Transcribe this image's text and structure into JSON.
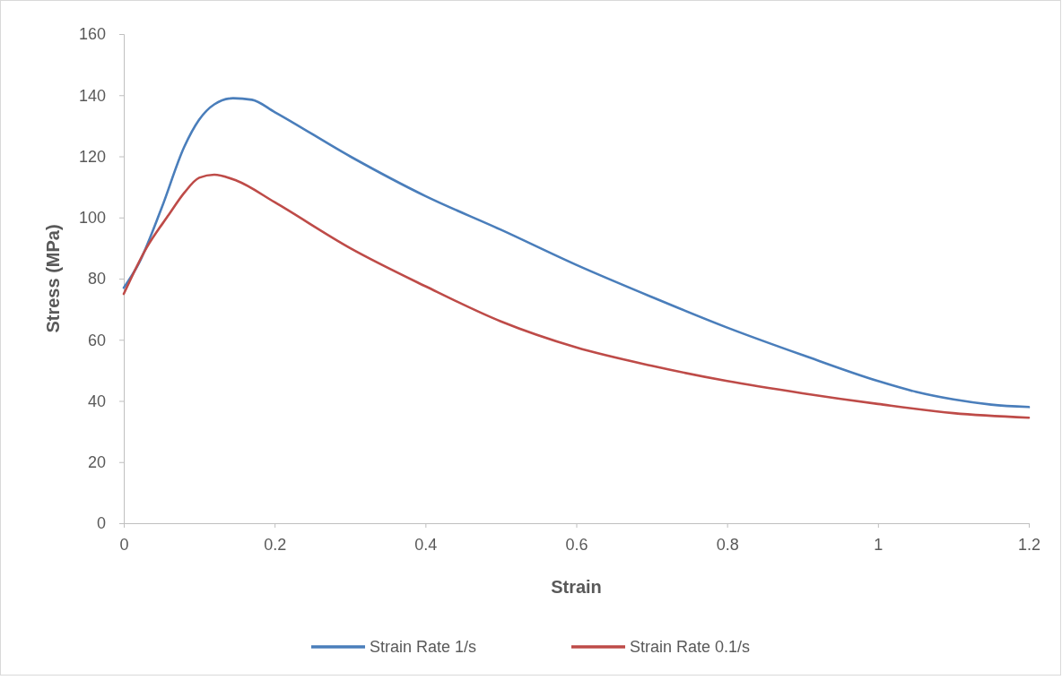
{
  "chart_data": {
    "type": "line",
    "xlabel": "Strain",
    "ylabel": "Stress (MPa)",
    "xlim": [
      0,
      1.2
    ],
    "ylim": [
      0,
      160
    ],
    "xticks": [
      0,
      0.2,
      0.4,
      0.6,
      0.8,
      1,
      1.2
    ],
    "yticks": [
      0,
      20,
      40,
      60,
      80,
      100,
      120,
      140,
      160
    ],
    "grid": false,
    "legend": "bottom",
    "marker": "none",
    "line_style": "solid",
    "series": [
      {
        "name": "Strain Rate 1/s",
        "color": "#4a7ebb",
        "x": [
          0,
          0.02,
          0.05,
          0.08,
          0.1,
          0.12,
          0.145,
          0.17,
          0.2,
          0.3,
          0.4,
          0.5,
          0.6,
          0.7,
          0.8,
          0.9,
          1,
          1.05,
          1.1,
          1.15,
          1.2
        ],
        "values": [
          77,
          85,
          103,
          123,
          132,
          137,
          139,
          138.5,
          134.5,
          120,
          107,
          96,
          84.5,
          74,
          64,
          55,
          46.5,
          43,
          40.5,
          38.8,
          38
        ]
      },
      {
        "name": "Strain Rate 0.1/s",
        "color": "#be4b48",
        "x": [
          0,
          0.03,
          0.06,
          0.08,
          0.1,
          0.12,
          0.15,
          0.2,
          0.3,
          0.4,
          0.5,
          0.6,
          0.7,
          0.8,
          0.9,
          1,
          1.1,
          1.2
        ],
        "values": [
          75,
          90,
          101,
          108,
          113,
          114,
          112,
          105,
          90,
          77.5,
          66,
          57.5,
          51.5,
          46.5,
          42.5,
          39,
          36,
          34.5
        ]
      }
    ]
  }
}
